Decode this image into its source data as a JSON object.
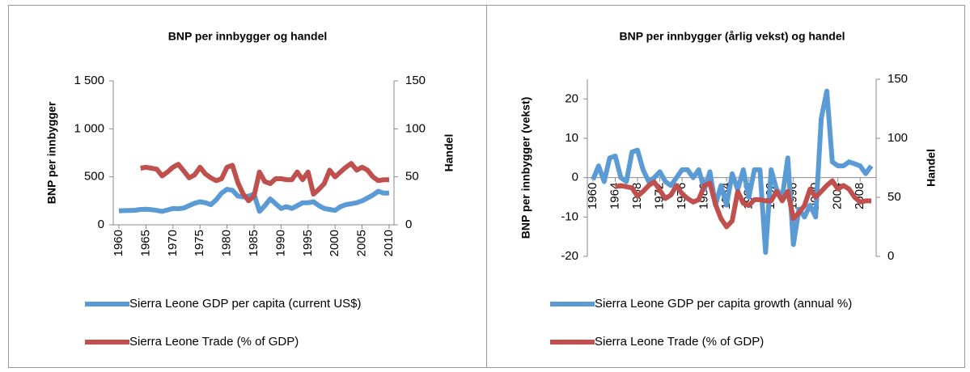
{
  "chart_data": [
    {
      "type": "line",
      "title": "BNP per innbygger og handel",
      "ylabel": "BNP per innbygger",
      "y2label": "Handel",
      "x": [
        1960,
        1961,
        1962,
        1963,
        1964,
        1965,
        1966,
        1967,
        1968,
        1969,
        1970,
        1971,
        1972,
        1973,
        1974,
        1975,
        1976,
        1977,
        1978,
        1979,
        1980,
        1981,
        1982,
        1983,
        1984,
        1985,
        1986,
        1987,
        1988,
        1989,
        1990,
        1991,
        1992,
        1993,
        1994,
        1995,
        1996,
        1997,
        1998,
        1999,
        2000,
        2001,
        2002,
        2003,
        2004,
        2005,
        2006,
        2007,
        2008,
        2009,
        2010
      ],
      "xlim": [
        1960,
        2010
      ],
      "xticks": [
        1960,
        1965,
        1970,
        1975,
        1980,
        1985,
        1990,
        1995,
        2000,
        2005,
        2010
      ],
      "ylim": [
        0,
        1500
      ],
      "yticks": [
        0,
        500,
        {
          "value": 1000,
          "label": "1 000"
        },
        {
          "value": 1500,
          "label": "1 500"
        }
      ],
      "y2lim": [
        0,
        150
      ],
      "y2ticks": [
        0,
        50,
        100,
        150
      ],
      "series": [
        {
          "name": "Sierra Leone GDP per capita (current US$)",
          "color": "#5b9bd5",
          "values": [
            145,
            148,
            150,
            152,
            160,
            162,
            158,
            150,
            140,
            155,
            170,
            168,
            175,
            200,
            225,
            240,
            230,
            210,
            260,
            330,
            370,
            360,
            300,
            290,
            300,
            320,
            140,
            200,
            270,
            220,
            170,
            190,
            170,
            200,
            230,
            230,
            240,
            200,
            170,
            160,
            150,
            190,
            210,
            220,
            230,
            250,
            280,
            310,
            350,
            330,
            330
          ]
        },
        {
          "name": "Sierra Leone Trade (% of GDP)",
          "color": "#c0504d",
          "axis": "y2",
          "values": [
            null,
            null,
            null,
            null,
            59,
            60,
            59,
            58,
            51,
            55,
            60,
            63,
            56,
            49,
            52,
            60,
            53,
            49,
            46,
            48,
            60,
            62,
            44,
            32,
            25,
            30,
            55,
            45,
            43,
            48,
            48,
            47,
            47,
            55,
            47,
            55,
            32,
            37,
            43,
            57,
            50,
            55,
            60,
            64,
            57,
            60,
            57,
            50,
            46,
            47,
            47
          ]
        }
      ]
    },
    {
      "type": "line",
      "title": "BNP per innbygger (årlig vekst) og handel",
      "ylabel": "BNP per innbygger (vekst)",
      "y2label": "Handel",
      "x": [
        1960,
        1961,
        1962,
        1963,
        1964,
        1965,
        1966,
        1967,
        1968,
        1969,
        1970,
        1971,
        1972,
        1973,
        1974,
        1975,
        1976,
        1977,
        1978,
        1979,
        1980,
        1981,
        1982,
        1983,
        1984,
        1985,
        1986,
        1987,
        1988,
        1989,
        1990,
        1991,
        1992,
        1993,
        1994,
        1995,
        1996,
        1997,
        1998,
        1999,
        2000,
        2001,
        2002,
        2003,
        2004,
        2005,
        2006,
        2007,
        2008,
        2009,
        2010
      ],
      "xlim": [
        1960,
        2010
      ],
      "xticks": [
        1960,
        1964,
        1968,
        1972,
        1976,
        1980,
        1984,
        1988,
        1992,
        1996,
        2000,
        2004,
        2008
      ],
      "ylim": [
        -20,
        25
      ],
      "yticks": [
        -20,
        -10,
        0,
        10,
        20
      ],
      "y2lim": [
        0,
        150
      ],
      "y2ticks": [
        0,
        50,
        100,
        150
      ],
      "series": [
        {
          "name": "Sierra Leone GDP per capita growth (annual %)",
          "color": "#5b9bd5",
          "values": [
            -0.5,
            3,
            -1,
            5,
            5.5,
            0,
            -1,
            6.5,
            7,
            2,
            -1,
            0,
            1.5,
            -1,
            -2,
            0,
            2,
            2,
            0,
            2,
            -3,
            1.5,
            -7,
            -2,
            -7,
            1,
            -3,
            2,
            -5,
            2,
            2,
            -19,
            2,
            -3,
            -5,
            5,
            -17,
            -8,
            -10,
            -7,
            -10,
            15,
            22,
            4,
            3,
            3,
            4,
            3.5,
            3,
            1,
            3
          ]
        },
        {
          "name": "Sierra Leone Trade (% of GDP)",
          "color": "#c0504d",
          "axis": "y2",
          "values": [
            null,
            null,
            null,
            null,
            59,
            60,
            59,
            58,
            51,
            55,
            60,
            63,
            56,
            49,
            52,
            60,
            53,
            49,
            46,
            48,
            60,
            62,
            44,
            32,
            25,
            30,
            55,
            45,
            43,
            48,
            48,
            47,
            47,
            55,
            47,
            55,
            32,
            37,
            43,
            57,
            50,
            55,
            60,
            64,
            57,
            60,
            57,
            50,
            46,
            47,
            47
          ]
        }
      ]
    }
  ]
}
